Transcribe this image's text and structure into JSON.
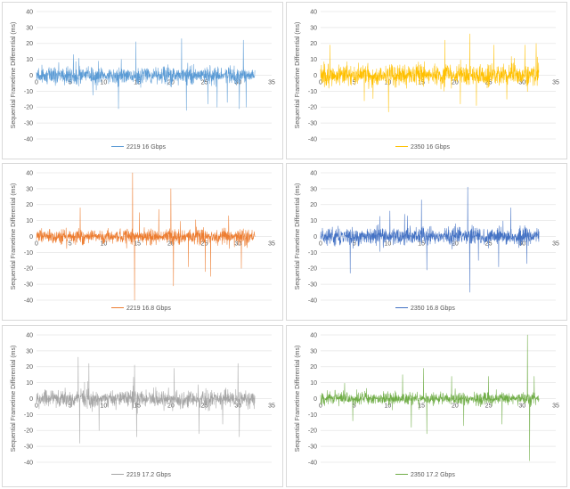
{
  "chart_data": [
    {
      "type": "line",
      "ylabel": "Sequential Frametime Differential (ms)",
      "xlabel": "",
      "xlim": [
        0,
        35
      ],
      "ylim": [
        -40,
        40
      ],
      "xticks": [
        0,
        5,
        10,
        15,
        20,
        25,
        30,
        35
      ],
      "yticks": [
        40,
        30,
        20,
        10,
        0,
        -10,
        -20,
        -30,
        -40
      ],
      "x_end": 32.5,
      "grid": "horizontal",
      "legend_position": "bottom",
      "series": [
        {
          "name": "2219 16 Gbps",
          "color": "#5b9bd5",
          "amplitude": 7,
          "spikes": [
            [
              3.3,
              8
            ],
            [
              5.5,
              13
            ],
            [
              12.2,
              -21
            ],
            [
              14.8,
              21
            ],
            [
              21.6,
              23
            ],
            [
              22.3,
              -22
            ],
            [
              25.5,
              -18
            ],
            [
              26.9,
              -20
            ],
            [
              28.4,
              -17
            ],
            [
              30.2,
              -21
            ],
            [
              30.8,
              22
            ],
            [
              31.2,
              -20
            ]
          ]
        }
      ]
    },
    {
      "type": "line",
      "ylabel": "Sequential Frametime Differential (ms)",
      "xlabel": "",
      "xlim": [
        0,
        35
      ],
      "ylim": [
        -40,
        40
      ],
      "xticks": [
        0,
        5,
        10,
        15,
        20,
        25,
        30,
        35
      ],
      "yticks": [
        40,
        30,
        20,
        10,
        0,
        -10,
        -20,
        -30,
        -40
      ],
      "x_end": 32.5,
      "grid": "horizontal",
      "legend_position": "bottom",
      "series": [
        {
          "name": "2350 16 Gbps",
          "color": "#ffc000",
          "amplitude": 9,
          "spikes": [
            [
              1.4,
              19
            ],
            [
              6.5,
              -16
            ],
            [
              10.1,
              -23
            ],
            [
              18.5,
              22
            ],
            [
              20.8,
              -18
            ],
            [
              22.2,
              26
            ],
            [
              23.2,
              -19
            ],
            [
              25.8,
              19
            ],
            [
              27.7,
              -15
            ],
            [
              30.4,
              19
            ],
            [
              32.1,
              20
            ]
          ]
        }
      ]
    },
    {
      "type": "line",
      "ylabel": "Sequential Frametime Differential (ms)",
      "xlabel": "",
      "xlim": [
        0,
        35
      ],
      "ylim": [
        -40,
        40
      ],
      "xticks": [
        0,
        5,
        10,
        15,
        20,
        25,
        30,
        35
      ],
      "yticks": [
        40,
        30,
        20,
        10,
        0,
        -10,
        -20,
        -30,
        -40
      ],
      "x_end": 32.5,
      "grid": "horizontal",
      "legend_position": "bottom",
      "series": [
        {
          "name": "2219 16.8 Gbps",
          "color": "#ed7d31",
          "amplitude": 6,
          "spikes": [
            [
              6.5,
              18
            ],
            [
              14.3,
              40
            ],
            [
              14.6,
              -40
            ],
            [
              15.3,
              15
            ],
            [
              18.2,
              17
            ],
            [
              20.0,
              30
            ],
            [
              20.4,
              -31
            ],
            [
              22.6,
              -19
            ],
            [
              25.1,
              -22
            ],
            [
              25.9,
              -25
            ],
            [
              28.6,
              13
            ],
            [
              30.5,
              -20
            ]
          ]
        }
      ]
    },
    {
      "type": "line",
      "ylabel": "Sequential Frametime Differential (ms)",
      "xlabel": "",
      "xlim": [
        0,
        35
      ],
      "ylim": [
        -40,
        40
      ],
      "xticks": [
        0,
        5,
        10,
        15,
        20,
        25,
        30,
        35
      ],
      "yticks": [
        40,
        30,
        20,
        10,
        0,
        -10,
        -20,
        -30,
        -40
      ],
      "x_end": 32.5,
      "grid": "horizontal",
      "legend_position": "bottom",
      "series": [
        {
          "name": "2350 16.8 Gbps",
          "color": "#4472c4",
          "amplitude": 7,
          "spikes": [
            [
              4.4,
              -23
            ],
            [
              10.3,
              16
            ],
            [
              12.5,
              14
            ],
            [
              15.0,
              23
            ],
            [
              15.8,
              -21
            ],
            [
              21.9,
              31
            ],
            [
              22.2,
              -35
            ],
            [
              23.5,
              -15
            ],
            [
              26.5,
              -19
            ],
            [
              28.3,
              18
            ],
            [
              30.7,
              -17
            ]
          ]
        }
      ]
    },
    {
      "type": "line",
      "ylabel": "Sequential Frametime Differential (ms)",
      "xlabel": "",
      "xlim": [
        0,
        35
      ],
      "ylim": [
        -40,
        40
      ],
      "xticks": [
        0,
        5,
        10,
        15,
        20,
        25,
        30,
        35
      ],
      "yticks": [
        40,
        30,
        20,
        10,
        0,
        -10,
        -20,
        -30,
        -40
      ],
      "x_end": 32.5,
      "grid": "horizontal",
      "legend_position": "bottom",
      "series": [
        {
          "name": "2219 17.2 Gbps",
          "color": "#a5a5a5",
          "amplitude": 7,
          "spikes": [
            [
              6.2,
              26
            ],
            [
              6.4,
              -28
            ],
            [
              7.8,
              22
            ],
            [
              9.3,
              -20
            ],
            [
              14.6,
              21
            ],
            [
              14.9,
              -24
            ],
            [
              20.5,
              19
            ],
            [
              24.2,
              -22
            ],
            [
              27.7,
              -16
            ],
            [
              30.0,
              22
            ],
            [
              30.2,
              -24
            ]
          ]
        }
      ]
    },
    {
      "type": "line",
      "ylabel": "Sequential Frametime Differential (ms)",
      "xlabel": "",
      "xlim": [
        0,
        35
      ],
      "ylim": [
        -40,
        40
      ],
      "xticks": [
        0,
        5,
        10,
        15,
        20,
        25,
        30,
        35
      ],
      "yticks": [
        40,
        30,
        20,
        10,
        0,
        -10,
        -20,
        -30,
        -40
      ],
      "x_end": 32.5,
      "grid": "horizontal",
      "legend_position": "bottom",
      "series": [
        {
          "name": "2350 17.2 Gbps",
          "color": "#70ad47",
          "amplitude": 5,
          "spikes": [
            [
              4.8,
              -14
            ],
            [
              12.2,
              15
            ],
            [
              13.5,
              -18
            ],
            [
              15.3,
              19
            ],
            [
              15.8,
              -22
            ],
            [
              19.5,
              14
            ],
            [
              21.3,
              -17
            ],
            [
              25.0,
              14
            ],
            [
              27.0,
              -16
            ],
            [
              30.8,
              40
            ],
            [
              31.1,
              -39
            ],
            [
              31.8,
              14
            ]
          ]
        }
      ]
    }
  ]
}
